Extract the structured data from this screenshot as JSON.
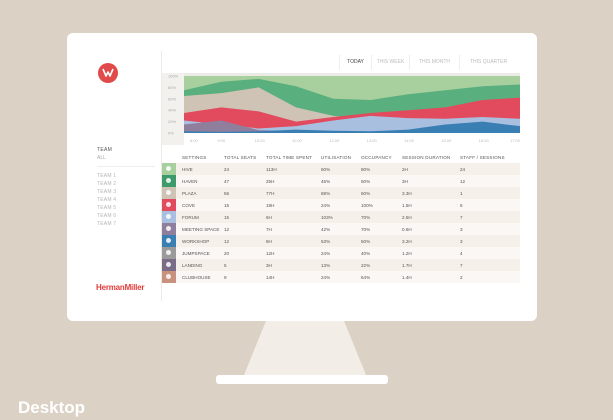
{
  "caption": "Desktop",
  "sidebar": {
    "team_title": "TEAM",
    "team_all": "ALL",
    "teams": [
      "TEAM 1",
      "TEAM 2",
      "TEAM 3",
      "TEAM 4",
      "TEAM 5",
      "TEAM 6",
      "TEAM 7"
    ],
    "brand": "HermanMiller"
  },
  "tabs": [
    {
      "label": "TODAY",
      "active": true
    },
    {
      "label": "THIS WEEK",
      "active": false
    },
    {
      "label": "THIS MONTH",
      "active": false
    },
    {
      "label": "THIS QUARTER",
      "active": false
    }
  ],
  "chart_data": {
    "type": "area",
    "y_ticks": [
      "100%",
      "80%",
      "60%",
      "40%",
      "20%",
      "0%"
    ],
    "x": [
      "8:00",
      "9:00",
      "10:00",
      "11:00",
      "12:00",
      "13:00",
      "14:00",
      "15:00",
      "16:00",
      "17:00"
    ],
    "ylim": [
      0,
      100
    ],
    "series": [
      {
        "color": "#a8cf9e",
        "values": [
          100,
          100,
          100,
          100,
          100,
          100,
          100,
          100,
          100,
          100
        ]
      },
      {
        "color": "#5aaf7e",
        "values": [
          75,
          90,
          95,
          82,
          60,
          58,
          68,
          75,
          82,
          85
        ]
      },
      {
        "color": "#cfc3b6",
        "values": [
          65,
          70,
          80,
          45,
          30,
          25,
          18,
          15,
          12,
          10
        ]
      },
      {
        "color": "#e24a5e",
        "values": [
          35,
          45,
          38,
          20,
          28,
          35,
          40,
          45,
          58,
          62
        ]
      },
      {
        "color": "#a8bfe0",
        "values": [
          22,
          15,
          8,
          12,
          22,
          30,
          26,
          25,
          28,
          25
        ]
      },
      {
        "color": "#8f7f9c",
        "values": [
          15,
          22,
          5,
          3,
          3,
          2,
          1,
          2,
          2,
          2
        ]
      },
      {
        "color": "#3a7fb4",
        "values": [
          3,
          2,
          3,
          6,
          4,
          3,
          6,
          15,
          20,
          12
        ]
      }
    ]
  },
  "table": {
    "headers": [
      "SETTINGS",
      "TOTAL SEATS",
      "TOTAL TIME SPENT",
      "UTILISATION",
      "OCCUPANCY",
      "SESSION DURATION",
      "STAFF / SESSIONS"
    ],
    "rows": [
      {
        "icon": "hive-icon",
        "color": "#a8cf9e",
        "name": "HIVE",
        "seats": "24",
        "time": "113H",
        "util": "60%",
        "occ": "80%",
        "dur": "2H",
        "staff": "24"
      },
      {
        "icon": "haven-icon",
        "color": "#3e9a6a",
        "name": "HAVEN",
        "seats": "47",
        "time": "25H",
        "util": "45%",
        "occ": "50%",
        "dur": "3H",
        "staff": "12"
      },
      {
        "icon": "plaza-icon",
        "color": "#cfc3b6",
        "name": "PLAZA",
        "seats": "56",
        "time": "77H",
        "util": "88%",
        "occ": "60%",
        "dur": "3.3H",
        "staff": "1"
      },
      {
        "icon": "cove-icon",
        "color": "#e24a5e",
        "name": "COVE",
        "seats": "15",
        "time": "19H",
        "util": "24%",
        "occ": "100%",
        "dur": "1.5H",
        "staff": "6"
      },
      {
        "icon": "forum-icon",
        "color": "#a8bfe0",
        "name": "FORUM",
        "seats": "15",
        "time": "6H",
        "util": "103%",
        "occ": "70%",
        "dur": "2.5H",
        "staff": "7"
      },
      {
        "icon": "meeting-space-icon",
        "color": "#8f7f9c",
        "name": "MEETING SPACE",
        "seats": "12",
        "time": "7H",
        "util": "42%",
        "occ": "70%",
        "dur": "0.6H",
        "staff": "3"
      },
      {
        "icon": "workshop-icon",
        "color": "#3a7fb4",
        "name": "WORKSHOP",
        "seats": "12",
        "time": "8H",
        "util": "53%",
        "occ": "50%",
        "dur": "3.2H",
        "staff": "3"
      },
      {
        "icon": "jumpspace-icon",
        "color": "#9b9b9b",
        "name": "JUMPSPACE",
        "seats": "20",
        "time": "12H",
        "util": "24%",
        "occ": "40%",
        "dur": "1.2H",
        "staff": "4"
      },
      {
        "icon": "landing-icon",
        "color": "#7a6b86",
        "name": "LANDING",
        "seats": "5",
        "time": "3H",
        "util": "13%",
        "occ": "22%",
        "dur": "1.7H",
        "staff": "7"
      },
      {
        "icon": "clubhouse-icon",
        "color": "#c9927e",
        "name": "CLUBHOUSE",
        "seats": "9",
        "time": "14H",
        "util": "24%",
        "occ": "64%",
        "dur": "1.4H",
        "staff": "2"
      }
    ]
  }
}
